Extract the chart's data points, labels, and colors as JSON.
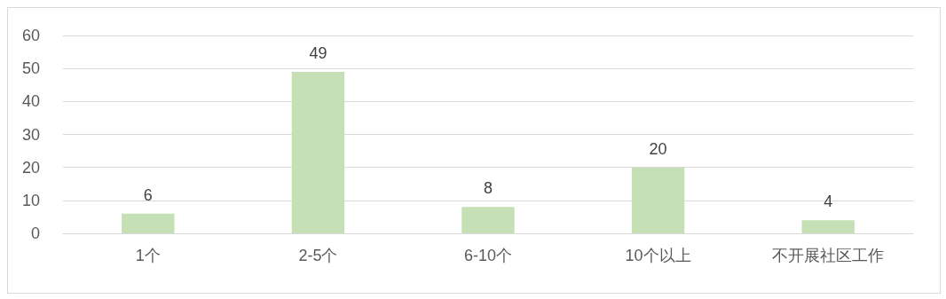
{
  "chart_data": {
    "type": "bar",
    "categories": [
      "1个",
      "2-5个",
      "6-10个",
      "10个以上",
      "不开展社区工作"
    ],
    "values": [
      6,
      49,
      8,
      20,
      4
    ],
    "color": "#c5e0b4",
    "ylim": [
      0,
      60
    ],
    "yticks": [
      0,
      10,
      20,
      30,
      40,
      50,
      60
    ],
    "grid": "y",
    "data_labels": true
  }
}
